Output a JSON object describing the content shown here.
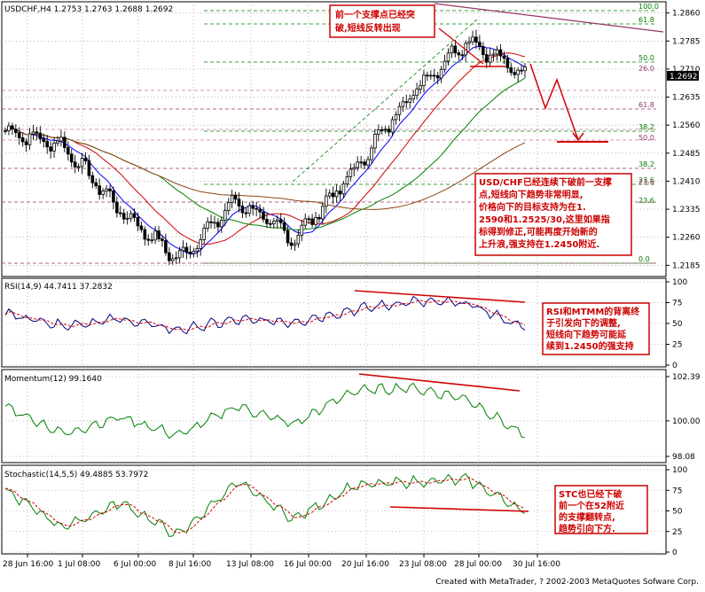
{
  "footer": "Created with MetaTrader, ? 2002-2003 MetaQuotes Sofware Corp.",
  "colors": {
    "bg": "#ffffff",
    "grid": "#8c8c8c",
    "candle": "#000000",
    "note": "#d00000",
    "fib_green": "#008000",
    "fib_purple": "#993366",
    "ma_blue": "#0000ff",
    "ma_red": "#d00000",
    "ma_green": "#008000",
    "ma_brown": "#8b4513"
  },
  "panels": {
    "main": {
      "title": "USDCHF,H4  1.2753 1.2763 1.2688 1.2692",
      "price_tag": "1.2692",
      "ticks": [
        "1.2860",
        "1.2785",
        "1.2710",
        "1.2635",
        "1.2560",
        "1.2485",
        "1.2410",
        "1.2335",
        "1.2260",
        "1.2185"
      ],
      "fib_upper": [
        "100.0",
        "61.8",
        "50.0",
        "38.2",
        "23.6",
        "0.0"
      ],
      "fib_lower": [
        "61.8",
        "38.2",
        "23.6",
        "23.6",
        "0.0"
      ],
      "fib_extra": [
        "26.0",
        "50.0"
      ]
    },
    "rsi": {
      "title": "RSI(14,9)  44.7411  37.2832",
      "ticks": [
        "100",
        "75",
        "50",
        "25",
        "0"
      ]
    },
    "mom": {
      "title": "Momentum(12)  99.1640",
      "ticks": [
        "102.39",
        "100.00",
        "98.08"
      ]
    },
    "sto": {
      "title": "Stochastic(14,5,5)  49.4885  53.7972",
      "ticks": [
        "100",
        "75",
        "50",
        "25",
        "0"
      ]
    }
  },
  "annotations": {
    "top": [
      "前一个支撑点已经突",
      "破,短线反转出现"
    ],
    "main": [
      "USD/CHF已经连续下破前一支撑",
      "点,短线向下趋势非常明显,",
      "价格向下的目标支持为在1.",
      "2590和1.2525/30,这里如果指",
      "标得到修正,可能再度开始新的",
      "上升浪,强支持在1.2450附近."
    ],
    "rsi": [
      "RSI和MTMM的背离终",
      "于引发向下的调整,",
      "短线向下趋势可能延",
      "续到1.2450的强支持"
    ],
    "sto": [
      "STC也已经下破",
      "前一个在52附近",
      "的支撑翻转点,",
      "趋势引向下方."
    ]
  },
  "x_labels": [
    "28 Jun 16:00",
    "1 Jul 08:00",
    "6 Jul 00:00",
    "8 Jul 16:00",
    "13 Jul 08:00",
    "16 Jul 00:00",
    "20 Jul 16:00",
    "23 Jul 08:00",
    "28 Jul 00:00",
    "30 Jul 16:00"
  ],
  "chart_data": [
    {
      "type": "candlestick",
      "title": "USDCHF,H4  1.2753 1.2763 1.2688 1.2692",
      "x": [
        "28 Jun 16:00",
        "1 Jul 08:00",
        "6 Jul 00:00",
        "8 Jul 16:00",
        "13 Jul 08:00",
        "16 Jul 00:00",
        "20 Jul 16:00",
        "23 Jul 08:00",
        "28 Jul 00:00",
        "30 Jul 16:00"
      ],
      "close": [
        1.2545,
        1.2505,
        1.233,
        1.22,
        1.236,
        1.2255,
        1.243,
        1.264,
        1.279,
        1.2692
      ],
      "ylim": [
        1.2155,
        1.289
      ],
      "last": {
        "open": 1.2753,
        "high": 1.2763,
        "low": 1.2688,
        "close": 1.2692
      }
    },
    {
      "type": "line",
      "title": "RSI(14,9)  44.7411  37.2832",
      "ylim": [
        0,
        100
      ],
      "x": [
        "28 Jun 16:00",
        "1 Jul 08:00",
        "6 Jul 00:00",
        "8 Jul 16:00",
        "13 Jul 08:00",
        "16 Jul 00:00",
        "20 Jul 16:00",
        "23 Jul 08:00",
        "28 Jul 00:00",
        "30 Jul 16:00"
      ],
      "values": [
        62,
        48,
        55,
        42,
        54,
        52,
        66,
        76,
        74,
        44.74
      ],
      "signal_last": 37.28
    },
    {
      "type": "line",
      "title": "Momentum(12)  99.1640",
      "ylim": [
        98.08,
        102.39
      ],
      "x": [
        "28 Jun 16:00",
        "1 Jul 08:00",
        "6 Jul 00:00",
        "8 Jul 16:00",
        "13 Jul 08:00",
        "16 Jul 00:00",
        "20 Jul 16:00",
        "23 Jul 08:00",
        "28 Jul 00:00",
        "30 Jul 16:00"
      ],
      "values": [
        100.8,
        99.3,
        100.2,
        99.2,
        100.8,
        99.8,
        101.6,
        101.8,
        101.2,
        99.16
      ]
    },
    {
      "type": "line",
      "title": "Stochastic(14,5,5)  49.4885  53.7972",
      "ylim": [
        0,
        100
      ],
      "x": [
        "28 Jun 16:00",
        "1 Jul 08:00",
        "6 Jul 00:00",
        "8 Jul 16:00",
        "13 Jul 08:00",
        "16 Jul 00:00",
        "20 Jul 16:00",
        "23 Jul 08:00",
        "28 Jul 00:00",
        "30 Jul 16:00"
      ],
      "values": [
        75,
        30,
        60,
        20,
        85,
        40,
        80,
        85,
        88,
        49.49
      ],
      "signal_last": 53.8
    }
  ]
}
